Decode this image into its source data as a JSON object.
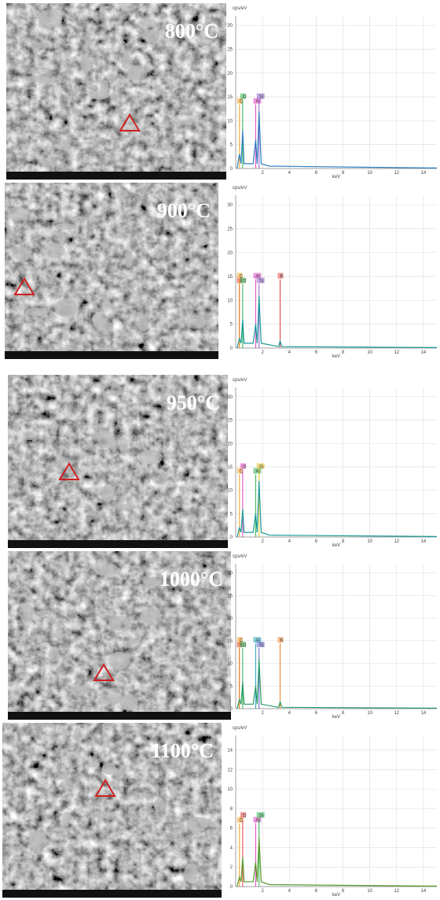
{
  "chart_data": [
    {
      "type": "line",
      "title": "800°C",
      "ylabel": "cps/eV",
      "xlabel": "keV",
      "xlim": [
        0,
        15
      ],
      "xticks": [
        2,
        4,
        6,
        8,
        10,
        12,
        14
      ],
      "ylim": [
        0,
        32
      ],
      "yticks": [
        0,
        5,
        10,
        15,
        20,
        25,
        30
      ],
      "grid": true,
      "series": [
        {
          "color": "#2f7fc0",
          "x": [
            0.1,
            0.28,
            0.4,
            0.52,
            0.62,
            1.3,
            1.49,
            1.6,
            1.74,
            1.9,
            2.5,
            15
          ],
          "values": [
            0,
            3,
            1,
            8,
            1,
            1,
            6,
            1,
            12,
            1,
            0.5,
            0.1
          ]
        }
      ],
      "peaks": [
        {
          "label": "C",
          "x": 0.28,
          "color": "#f4a020"
        },
        {
          "label": "O",
          "x": 0.52,
          "color": "#2ab04a"
        },
        {
          "label": "Al",
          "x": 1.49,
          "color": "#e040c0"
        },
        {
          "label": "Si",
          "x": 1.74,
          "color": "#9060d0"
        }
      ]
    },
    {
      "type": "line",
      "title": "900°C",
      "ylabel": "cps/eV",
      "xlabel": "keV",
      "xlim": [
        0,
        15
      ],
      "xticks": [
        2,
        4,
        6,
        8,
        10,
        12,
        14
      ],
      "ylim": [
        0,
        32
      ],
      "yticks": [
        0,
        5,
        10,
        15,
        20,
        25,
        30
      ],
      "grid": true,
      "series": [
        {
          "color": "#1a9a9a",
          "x": [
            0.1,
            0.28,
            0.4,
            0.52,
            0.62,
            1.3,
            1.49,
            1.6,
            1.74,
            1.9,
            3.2,
            3.31,
            3.45,
            15
          ],
          "values": [
            0,
            2,
            1,
            6,
            1,
            1,
            5,
            1,
            11,
            1,
            0.3,
            1.5,
            0.3,
            0.1
          ]
        }
      ],
      "peaks": [
        {
          "label": "K",
          "x": 0.26,
          "color": "#e04040"
        },
        {
          "label": "C",
          "x": 0.28,
          "color": "#f4a020"
        },
        {
          "label": "O",
          "x": 0.52,
          "color": "#2ab04a"
        },
        {
          "label": "Al",
          "x": 1.49,
          "color": "#e040c0"
        },
        {
          "label": "Si",
          "x": 1.74,
          "color": "#9060d0"
        },
        {
          "label": "K",
          "x": 3.31,
          "color": "#e04040"
        }
      ]
    },
    {
      "type": "line",
      "title": "950°C",
      "ylabel": "cps/eV",
      "xlabel": "keV",
      "xlim": [
        0,
        15
      ],
      "xticks": [
        2,
        4,
        6,
        8,
        10,
        12,
        14
      ],
      "ylim": [
        0,
        32
      ],
      "yticks": [
        0,
        5,
        10,
        15,
        20,
        25,
        30
      ],
      "grid": true,
      "series": [
        {
          "color": "#1a9a9a",
          "x": [
            0.1,
            0.28,
            0.4,
            0.52,
            0.62,
            1.3,
            1.49,
            1.6,
            1.74,
            1.9,
            2.5,
            15
          ],
          "values": [
            0,
            2,
            1,
            6,
            1,
            1,
            5,
            1,
            12,
            1,
            0.4,
            0.1
          ]
        }
      ],
      "peaks": [
        {
          "label": "C",
          "x": 0.28,
          "color": "#f4a020"
        },
        {
          "label": "O",
          "x": 0.52,
          "color": "#e040c0"
        },
        {
          "label": "Al",
          "x": 1.49,
          "color": "#2ab04a"
        },
        {
          "label": "Si",
          "x": 1.74,
          "color": "#e0c020"
        }
      ]
    },
    {
      "type": "line",
      "title": "1000°C",
      "ylabel": "cps/eV",
      "xlabel": "keV",
      "xlim": [
        0,
        15
      ],
      "xticks": [
        2,
        4,
        6,
        8,
        10,
        12,
        14
      ],
      "ylim": [
        0,
        32
      ],
      "yticks": [
        0,
        5,
        10,
        15,
        20,
        25,
        30
      ],
      "grid": true,
      "series": [
        {
          "color": "#2a9a6a",
          "x": [
            0.1,
            0.28,
            0.4,
            0.52,
            0.62,
            1.3,
            1.49,
            1.6,
            1.74,
            1.9,
            3.2,
            3.31,
            3.45,
            15
          ],
          "values": [
            0,
            2,
            1,
            6,
            1,
            1,
            5,
            1,
            11,
            1,
            0.3,
            1.5,
            0.3,
            0.1
          ]
        }
      ],
      "peaks": [
        {
          "label": "K",
          "x": 0.26,
          "color": "#e04040"
        },
        {
          "label": "C",
          "x": 0.28,
          "color": "#f4a020"
        },
        {
          "label": "O",
          "x": 0.52,
          "color": "#2ab04a"
        },
        {
          "label": "Al",
          "x": 1.49,
          "color": "#20a0c0"
        },
        {
          "label": "Si",
          "x": 1.74,
          "color": "#6060d0"
        },
        {
          "label": "K",
          "x": 3.31,
          "color": "#f08020"
        }
      ]
    },
    {
      "type": "line",
      "title": "1100°C",
      "ylabel": "cps/eV",
      "xlabel": "keV",
      "xlim": [
        0,
        15
      ],
      "xticks": [
        2,
        4,
        6,
        8,
        10,
        12,
        14
      ],
      "ylim": [
        0,
        15.5
      ],
      "yticks": [
        0,
        2,
        4,
        6,
        8,
        10,
        12,
        14
      ],
      "grid": true,
      "series": [
        {
          "color": "#5a9a2a",
          "x": [
            0.1,
            0.28,
            0.4,
            0.52,
            0.62,
            1.3,
            1.49,
            1.6,
            1.74,
            1.9,
            2.5,
            15
          ],
          "values": [
            0,
            1,
            0.5,
            3,
            0.5,
            0.5,
            2.5,
            0.5,
            5,
            0.5,
            0.2,
            0.05
          ]
        }
      ],
      "peaks": [
        {
          "label": "C",
          "x": 0.28,
          "color": "#f4a020"
        },
        {
          "label": "O",
          "x": 0.52,
          "color": "#e04040"
        },
        {
          "label": "Al",
          "x": 1.49,
          "color": "#e040c0"
        },
        {
          "label": "Si",
          "x": 1.74,
          "color": "#2ab04a"
        }
      ]
    }
  ]
}
